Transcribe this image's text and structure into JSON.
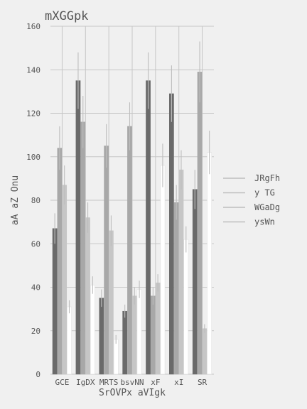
{
  "chart_data": {
    "type": "bar",
    "title": "mXGGpk",
    "xlabel": "SrOVPx aVIgk",
    "ylabel": "aA aZ Onu",
    "ylim": [
      0,
      160
    ],
    "yticks": [
      0,
      20,
      40,
      60,
      80,
      100,
      120,
      140,
      160
    ],
    "categories": [
      "GCE",
      "IgDX",
      "MRTS",
      "bsvNN",
      "xF",
      "xI",
      "SR"
    ],
    "grid": true,
    "legend_position": "right",
    "error_bars": true,
    "series": [
      {
        "name": "JRgFh",
        "color": "#6a6a6a",
        "values": [
          67,
          135,
          35,
          29,
          135,
          129,
          85
        ],
        "errors": [
          7,
          13,
          4,
          3,
          13,
          13,
          9
        ]
      },
      {
        "name": "y TG",
        "color": "#a8a8a8",
        "values": [
          104,
          116,
          105,
          114,
          36,
          79,
          139
        ],
        "errors": [
          10,
          12,
          10,
          11,
          4,
          8,
          14
        ]
      },
      {
        "name": "WGaDg",
        "color": "#c6c6c6",
        "values": [
          87,
          72,
          66,
          36,
          42,
          94,
          21
        ],
        "errors": [
          9,
          7,
          7,
          4,
          4,
          9,
          2
        ]
      },
      {
        "name": "ysWn",
        "color": "#ffffff",
        "values": [
          31,
          41,
          16,
          39,
          96,
          62,
          102
        ],
        "errors": [
          3,
          4,
          2,
          4,
          10,
          6,
          10
        ]
      }
    ]
  }
}
